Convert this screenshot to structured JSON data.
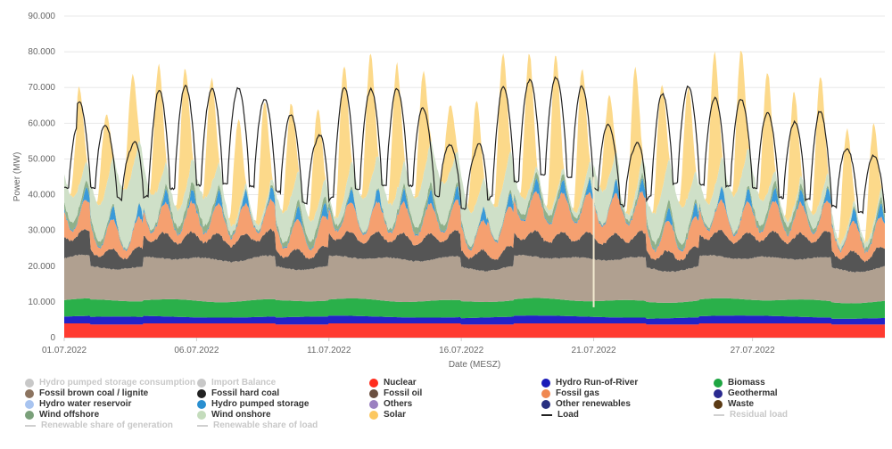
{
  "chart_data": {
    "type": "area",
    "ylabel": "Power (MW)",
    "xlabel": "Date (MESZ)",
    "ylim": [
      0,
      90000
    ],
    "yticks": [
      "0",
      "10.000",
      "20.000",
      "30.000",
      "40.000",
      "50.000",
      "60.000",
      "70.000",
      "80.000",
      "90.000"
    ],
    "xticks": [
      {
        "day": 1,
        "label": "01.07.2022"
      },
      {
        "day": 6,
        "label": "06.07.2022"
      },
      {
        "day": 11,
        "label": "11.07.2022"
      },
      {
        "day": 16,
        "label": "16.07.2022"
      },
      {
        "day": 21,
        "label": "21.07.2022"
      },
      {
        "day": 27,
        "label": "27.07.2022"
      }
    ],
    "x_range_days": [
      1,
      32
    ],
    "grid": true,
    "legend_position": "bottom",
    "stack_order": [
      "Nuclear",
      "Hydro Run-of-River",
      "Biomass",
      "Fossil brown coal / lignite",
      "Fossil hard coal",
      "Fossil gas",
      "Hydro pumped storage",
      "Wind offshore",
      "Wind onshore",
      "Solar"
    ],
    "series": [
      {
        "name": "Nuclear",
        "color": "#ff3b30",
        "approx_level_mw": 4000
      },
      {
        "name": "Hydro Run-of-River",
        "color": "#2323c8",
        "approx_level_mw": 1900
      },
      {
        "name": "Biomass",
        "color": "#2ab04a",
        "approx_level_mw": 4600
      },
      {
        "name": "Fossil brown coal / lignite",
        "color": "#b0a090",
        "approx_level_mw": 11500
      },
      {
        "name": "Fossil hard coal",
        "color": "#555555",
        "approx_range_mw": [
          4000,
          8000
        ]
      },
      {
        "name": "Fossil gas",
        "color": "#f5a070",
        "approx_range_mw": [
          2000,
          9000
        ]
      },
      {
        "name": "Hydro pumped storage",
        "color": "#3a9ad9",
        "approx_range_mw": [
          0,
          4000
        ]
      },
      {
        "name": "Wind offshore",
        "color": "#8fb08a",
        "approx_range_mw": [
          300,
          3000
        ]
      },
      {
        "name": "Wind onshore",
        "color": "#cfe0c8",
        "approx_range_mw": [
          2000,
          17000
        ]
      },
      {
        "name": "Solar",
        "color": "#fcd98a",
        "daily_peak_mw": [
          28000,
          20000,
          26000,
          34000,
          35000,
          30000,
          26000,
          30000,
          26000,
          27000,
          37000,
          36000,
          36000,
          30000,
          18000,
          28000,
          37000,
          38000,
          40000,
          36000,
          22000,
          36000,
          30000,
          30000,
          38000,
          36000,
          34000,
          32000,
          35000,
          28000,
          28000
        ]
      },
      {
        "name": "Load",
        "color": "#222222",
        "daily_peak_mw": [
          66500,
          60000,
          53000,
          69000,
          70500,
          69500,
          70000,
          67000,
          63000,
          55000,
          70000,
          69500,
          70000,
          65000,
          54000,
          52000,
          70000,
          72000,
          73000,
          71000,
          60000,
          53000,
          68000,
          70500,
          67000,
          67000,
          63000,
          60000,
          64000,
          53000,
          51000
        ],
        "daily_min_mw": [
          42000,
          42000,
          37000,
          41000,
          42000,
          43000,
          43000,
          42000,
          40000,
          36000,
          41000,
          42000,
          43000,
          42000,
          38000,
          35000,
          42000,
          45000,
          46000,
          44000,
          40000,
          35000,
          42000,
          44000,
          42000,
          43000,
          41000,
          38000,
          39000,
          35000,
          35000
        ]
      }
    ]
  },
  "legend": [
    {
      "label": "Hydro pumped storage consumption",
      "color": "#c8c8c8",
      "kind": "dot",
      "dim": true,
      "icon": "dot-marker"
    },
    {
      "label": "Import Balance",
      "color": "#c8c8c8",
      "kind": "dot",
      "dim": true,
      "icon": "dot-marker"
    },
    {
      "label": "Nuclear",
      "color": "#ff2b1c",
      "kind": "dot",
      "dim": false,
      "icon": "dot-marker"
    },
    {
      "label": "Hydro Run-of-River",
      "color": "#1a1ab8",
      "kind": "dot",
      "dim": false,
      "icon": "dot-marker"
    },
    {
      "label": "Biomass",
      "color": "#1ea542",
      "kind": "dot",
      "dim": false,
      "icon": "dot-marker"
    },
    {
      "label": "Fossil brown coal / lignite",
      "color": "#8c7460",
      "kind": "dot",
      "dim": false,
      "icon": "dot-marker"
    },
    {
      "label": "Fossil hard coal",
      "color": "#222222",
      "kind": "dot",
      "dim": false,
      "icon": "dot-marker"
    },
    {
      "label": "Fossil oil",
      "color": "#6b5040",
      "kind": "dot",
      "dim": false,
      "icon": "dot-marker"
    },
    {
      "label": "Fossil gas",
      "color": "#f08850",
      "kind": "dot",
      "dim": false,
      "icon": "dot-marker"
    },
    {
      "label": "Geothermal",
      "color": "#2a2a90",
      "kind": "dot",
      "dim": false,
      "icon": "dot-marker"
    },
    {
      "label": "Hydro water reservoir",
      "color": "#a8c4f0",
      "kind": "dot",
      "dim": false,
      "icon": "dot-marker"
    },
    {
      "label": "Hydro pumped storage",
      "color": "#2a8fd0",
      "kind": "dot",
      "dim": false,
      "icon": "dot-marker"
    },
    {
      "label": "Others",
      "color": "#9a80c0",
      "kind": "dot",
      "dim": false,
      "icon": "dot-marker"
    },
    {
      "label": "Other renewables",
      "color": "#283080",
      "kind": "dot",
      "dim": false,
      "icon": "dot-marker"
    },
    {
      "label": "Waste",
      "color": "#5a3a14",
      "kind": "dot",
      "dim": false,
      "icon": "dot-marker"
    },
    {
      "label": "Wind offshore",
      "color": "#7aa07a",
      "kind": "dot",
      "dim": false,
      "icon": "dot-marker"
    },
    {
      "label": "Wind onshore",
      "color": "#c4dcbc",
      "kind": "dot",
      "dim": false,
      "icon": "dot-marker"
    },
    {
      "label": "Solar",
      "color": "#fcc860",
      "kind": "dot",
      "dim": false,
      "icon": "dot-marker"
    },
    {
      "label": "Load",
      "color": "#222222",
      "kind": "line",
      "dim": false,
      "icon": "line-marker"
    },
    {
      "label": "Residual load",
      "color": "#d0d0d0",
      "kind": "line",
      "dim": true,
      "icon": "line-marker"
    },
    {
      "label": "Renewable share of generation",
      "color": "#d0d0d0",
      "kind": "line",
      "dim": true,
      "icon": "line-marker"
    },
    {
      "label": "Renewable share of load",
      "color": "#d0d0d0",
      "kind": "line",
      "dim": true,
      "icon": "line-marker"
    }
  ]
}
